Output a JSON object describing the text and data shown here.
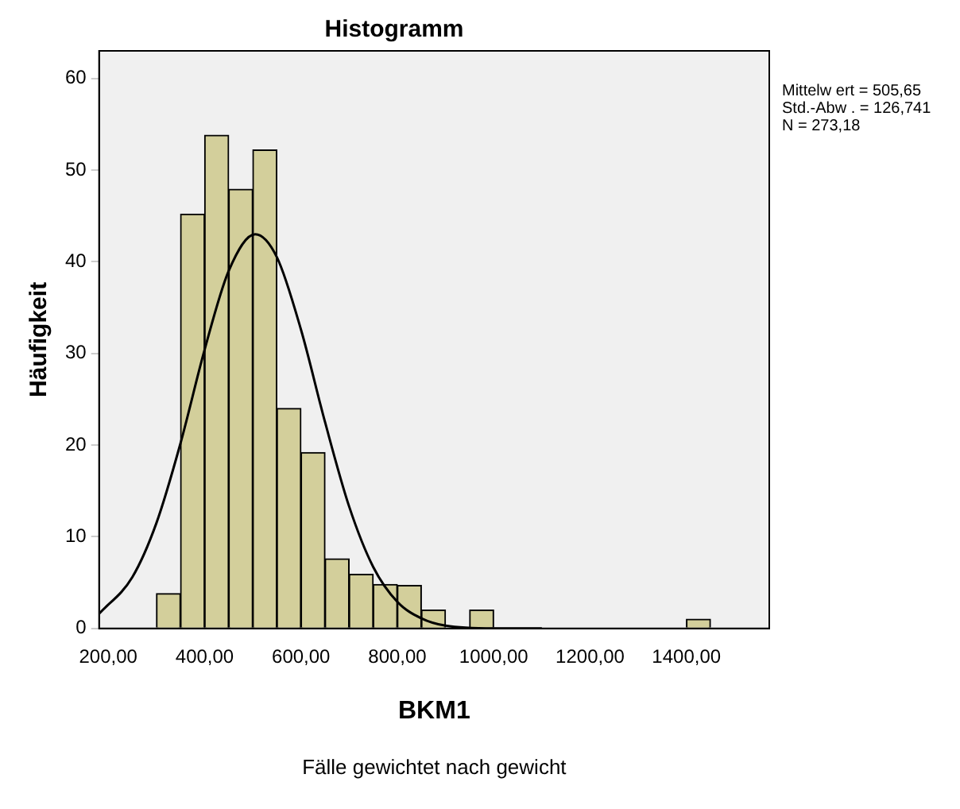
{
  "chart_data": {
    "type": "histogram",
    "title": "Histogramm",
    "xlabel": "BKM1",
    "ylabel": "Häufigkeit",
    "bins": [
      300,
      350,
      400,
      450,
      500,
      550,
      600,
      650,
      700,
      750,
      800,
      850,
      900,
      950,
      1000,
      1050,
      1100,
      1150,
      1200,
      1250,
      1300,
      1350,
      1400,
      1450
    ],
    "values": [
      3.8,
      45.2,
      53.8,
      47.9,
      52.2,
      24,
      19.2,
      7.6,
      5.9,
      4.8,
      4.7,
      2,
      0,
      2,
      0,
      0,
      0,
      0,
      0,
      0,
      0,
      0,
      1
    ],
    "color": "#d3cf9b",
    "series": [
      {
        "type": "line",
        "color": "#000000",
        "x": [
          181,
          250,
          300,
          350,
          400,
          450,
          505,
          550,
          600,
          650,
          700,
          750,
          800,
          850,
          900,
          1000,
          1100
        ],
        "values": [
          1.6,
          5.6,
          11.5,
          20.2,
          30.4,
          39.0,
          43.0,
          40.5,
          32.6,
          22.5,
          13.3,
          6.7,
          2.9,
          1.1,
          0.3,
          0,
          0
        ]
      }
    ],
    "xlim": [
      181,
      1572
    ],
    "xticks": [
      {
        "value": 200,
        "label": "200,00"
      },
      {
        "value": 400,
        "label": "400,00"
      },
      {
        "value": 600,
        "label": "600,00"
      },
      {
        "value": 800,
        "label": "800,00"
      },
      {
        "value": 1000,
        "label": "1000,00"
      },
      {
        "value": 1200,
        "label": "1200,00"
      },
      {
        "value": 1400,
        "label": "1400,00"
      }
    ],
    "ylim": [
      0,
      63
    ],
    "yticks": [
      0,
      10,
      20,
      30,
      40,
      50,
      60
    ],
    "grid": false,
    "legend": false,
    "marker": "none",
    "annotations": [
      "Mittelw ert = 505,65\nStd.-Abw . = 126,741\nN = 273,18",
      "Fälle gewichtet nach gewicht"
    ]
  }
}
